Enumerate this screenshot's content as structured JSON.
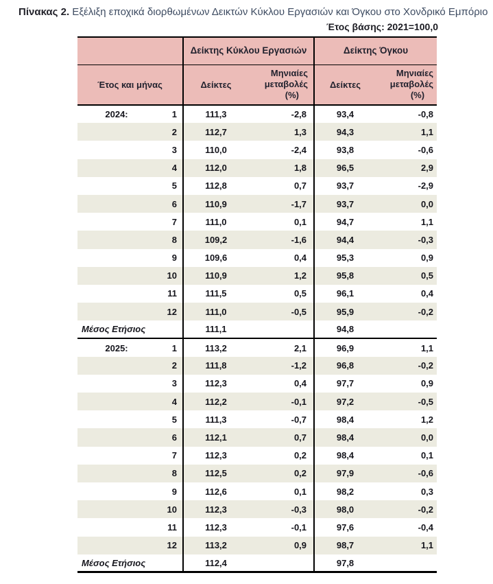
{
  "page": {
    "title_label": "Πίνακας 2.",
    "title_text": " Εξέλιξη εποχικά διορθωμένων Δεικτών Κύκλου Εργασιών και Όγκου στο Χονδρικό Εμπόριο",
    "base_year_note": "Έτος βάσης: 2021=100,0"
  },
  "table": {
    "row_axis_header": "Έτος και μήνας",
    "groups": [
      {
        "label": "Δείκτης Κύκλου Εργασιών"
      },
      {
        "label": "Δείκτης Όγκου"
      }
    ],
    "sub_header_index": "Δείκτες",
    "sub_header_change_lines": [
      "Μηνιαίες",
      "μεταβολές",
      "(%)"
    ],
    "average_row_label": "Μέσος Ετήσιος",
    "blocks": [
      {
        "year": "2024:",
        "rows": [
          {
            "month": "1",
            "turnover_index": "111,3",
            "turnover_change": "-2,8",
            "volume_index": "93,4",
            "volume_change": "-0,8"
          },
          {
            "month": "2",
            "turnover_index": "112,7",
            "turnover_change": "1,3",
            "volume_index": "94,3",
            "volume_change": "1,1"
          },
          {
            "month": "3",
            "turnover_index": "110,0",
            "turnover_change": "-2,4",
            "volume_index": "93,8",
            "volume_change": "-0,6"
          },
          {
            "month": "4",
            "turnover_index": "112,0",
            "turnover_change": "1,8",
            "volume_index": "96,5",
            "volume_change": "2,9"
          },
          {
            "month": "5",
            "turnover_index": "112,8",
            "turnover_change": "0,7",
            "volume_index": "93,7",
            "volume_change": "-2,9"
          },
          {
            "month": "6",
            "turnover_index": "110,9",
            "turnover_change": "-1,7",
            "volume_index": "93,7",
            "volume_change": "0,0"
          },
          {
            "month": "7",
            "turnover_index": "111,0",
            "turnover_change": "0,1",
            "volume_index": "94,7",
            "volume_change": "1,1"
          },
          {
            "month": "8",
            "turnover_index": "109,2",
            "turnover_change": "-1,6",
            "volume_index": "94,4",
            "volume_change": "-0,3"
          },
          {
            "month": "9",
            "turnover_index": "109,6",
            "turnover_change": "0,4",
            "volume_index": "95,3",
            "volume_change": "0,9"
          },
          {
            "month": "10",
            "turnover_index": "110,9",
            "turnover_change": "1,2",
            "volume_index": "95,8",
            "volume_change": "0,5"
          },
          {
            "month": "11",
            "turnover_index": "111,5",
            "turnover_change": "0,5",
            "volume_index": "96,1",
            "volume_change": "0,4"
          },
          {
            "month": "12",
            "turnover_index": "111,0",
            "turnover_change": "-0,5",
            "volume_index": "95,9",
            "volume_change": "-0,2"
          }
        ],
        "average": {
          "turnover_index": "111,1",
          "volume_index": "94,8"
        }
      },
      {
        "year": "2025:",
        "rows": [
          {
            "month": "1",
            "turnover_index": "113,2",
            "turnover_change": "2,1",
            "volume_index": "96,9",
            "volume_change": "1,1"
          },
          {
            "month": "2",
            "turnover_index": "111,8",
            "turnover_change": "-1,2",
            "volume_index": "96,8",
            "volume_change": "-0,2"
          },
          {
            "month": "3",
            "turnover_index": "112,3",
            "turnover_change": "0,4",
            "volume_index": "97,7",
            "volume_change": "0,9"
          },
          {
            "month": "4",
            "turnover_index": "112,2",
            "turnover_change": "-0,1",
            "volume_index": "97,2",
            "volume_change": "-0,5"
          },
          {
            "month": "5",
            "turnover_index": "111,3",
            "turnover_change": "-0,7",
            "volume_index": "98,4",
            "volume_change": "1,2"
          },
          {
            "month": "6",
            "turnover_index": "112,1",
            "turnover_change": "0,7",
            "volume_index": "98,4",
            "volume_change": "0,0"
          },
          {
            "month": "7",
            "turnover_index": "112,3",
            "turnover_change": "0,2",
            "volume_index": "98,4",
            "volume_change": "0,1"
          },
          {
            "month": "8",
            "turnover_index": "112,5",
            "turnover_change": "0,2",
            "volume_index": "97,9",
            "volume_change": "-0,6"
          },
          {
            "month": "9",
            "turnover_index": "112,6",
            "turnover_change": "0,1",
            "volume_index": "98,2",
            "volume_change": "0,3"
          },
          {
            "month": "10",
            "turnover_index": "112,3",
            "turnover_change": "-0,3",
            "volume_index": "98,0",
            "volume_change": "-0,2"
          },
          {
            "month": "11",
            "turnover_index": "112,3",
            "turnover_change": "-0,1",
            "volume_index": "97,6",
            "volume_change": "-0,4"
          },
          {
            "month": "12",
            "turnover_index": "113,2",
            "turnover_change": "0,9",
            "volume_index": "98,7",
            "volume_change": "1,1"
          }
        ],
        "average": {
          "turnover_index": "112,4",
          "volume_index": "97,8"
        }
      }
    ]
  },
  "colors": {
    "header_bg": "#ecbcb8",
    "stripe_bg": "#ecebe0",
    "border": "#000000",
    "title_color": "#3d4b61"
  }
}
